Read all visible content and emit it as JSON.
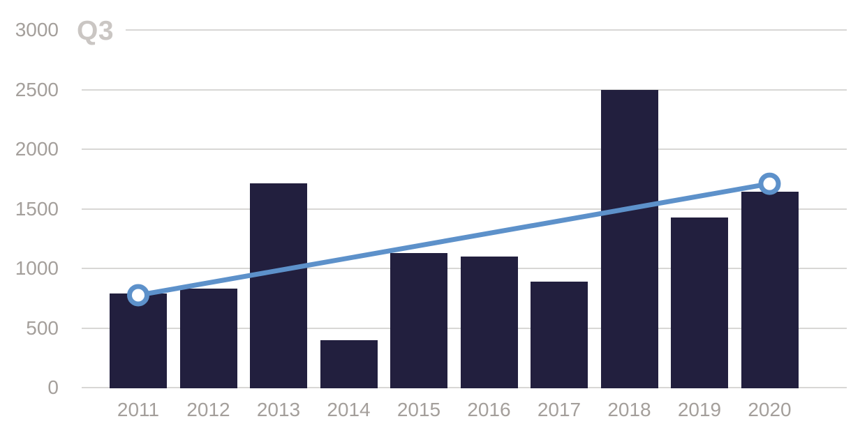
{
  "chart_data": {
    "type": "bar",
    "title": "Q3",
    "categories": [
      "2011",
      "2012",
      "2013",
      "2014",
      "2015",
      "2016",
      "2017",
      "2018",
      "2019",
      "2020"
    ],
    "series": [
      {
        "name": "Q3 bars",
        "type": "bar",
        "values": [
          790,
          830,
          1715,
          395,
          1130,
          1100,
          890,
          2500,
          1425,
          1645
        ]
      },
      {
        "name": "Trend line",
        "type": "line",
        "categories": [
          "2011",
          "2020"
        ],
        "values": [
          775,
          1710
        ],
        "markers": "ring-endpoints"
      }
    ],
    "xlabel": "",
    "ylabel": "",
    "ylim": [
      0,
      3000
    ],
    "yticks": [
      0,
      500,
      1000,
      1500,
      2000,
      2500,
      3000
    ],
    "grid": true,
    "legend_position": "none",
    "colors": {
      "bar": "#221f3e",
      "trend_line": "#5d91ca",
      "marker_fill": "#ffffff",
      "gridline": "#d8d7d5",
      "axis_label": "#a49f9b",
      "title": "#cac6c3",
      "background": "#ffffff"
    }
  }
}
